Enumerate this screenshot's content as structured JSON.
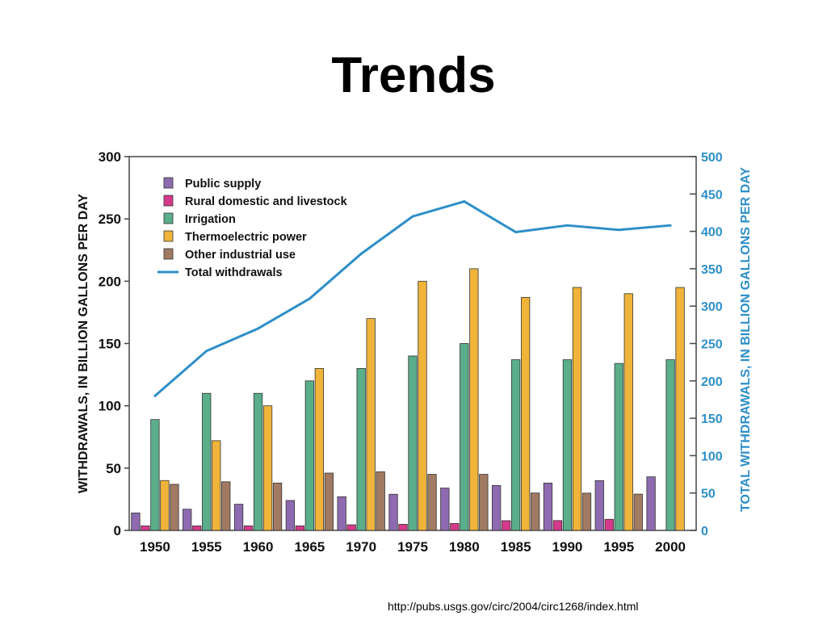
{
  "slide": {
    "title": "Trends",
    "source_url": "http://pubs.usgs.gov/circ/2004/circ1268/index.html"
  },
  "chart_data": {
    "type": "bar",
    "title": "",
    "categories": [
      "1950",
      "1955",
      "1960",
      "1965",
      "1970",
      "1975",
      "1980",
      "1985",
      "1990",
      "1995",
      "2000"
    ],
    "ylabel": "WITHDRAWALS, IN BILLION GALLONS PER DAY",
    "ylim": [
      0,
      300
    ],
    "yticks": [
      0,
      50,
      100,
      150,
      200,
      250,
      300
    ],
    "y2label": "TOTAL WITHDRAWALS, IN BILLION GALLONS PER DAY",
    "y2lim": [
      0,
      500
    ],
    "y2ticks": [
      0,
      50,
      100,
      150,
      200,
      250,
      300,
      350,
      400,
      450,
      500
    ],
    "legend_position": "top-left",
    "grid": false,
    "series": [
      {
        "name": "Public supply",
        "color": "#8e6bb0",
        "values": [
          14,
          17,
          21,
          24,
          27,
          29,
          34,
          36,
          38,
          40,
          43
        ]
      },
      {
        "name": "Rural domestic and livestock",
        "color": "#d63a8c",
        "values": [
          3.6,
          3.6,
          3.6,
          3.6,
          4.5,
          4.9,
          5.6,
          7.8,
          7.9,
          8.9,
          null
        ]
      },
      {
        "name": "Irrigation",
        "color": "#5aae8a",
        "values": [
          89,
          110,
          110,
          120,
          130,
          140,
          150,
          137,
          137,
          134,
          137
        ]
      },
      {
        "name": "Thermoelectric power",
        "color": "#f0b43a",
        "values": [
          40,
          72,
          100,
          130,
          170,
          200,
          210,
          187,
          195,
          190,
          195
        ]
      },
      {
        "name": "Other industrial use",
        "color": "#a07a62",
        "values": [
          37,
          39,
          38,
          46,
          47,
          45,
          45,
          30,
          29.9,
          29.1,
          null
        ]
      }
    ],
    "line_series": {
      "name": "Total withdrawals",
      "color": "#2e8fc8",
      "axis": "right",
      "values": [
        180,
        240,
        270,
        310,
        370,
        420,
        440,
        399,
        408,
        402,
        408
      ]
    }
  }
}
